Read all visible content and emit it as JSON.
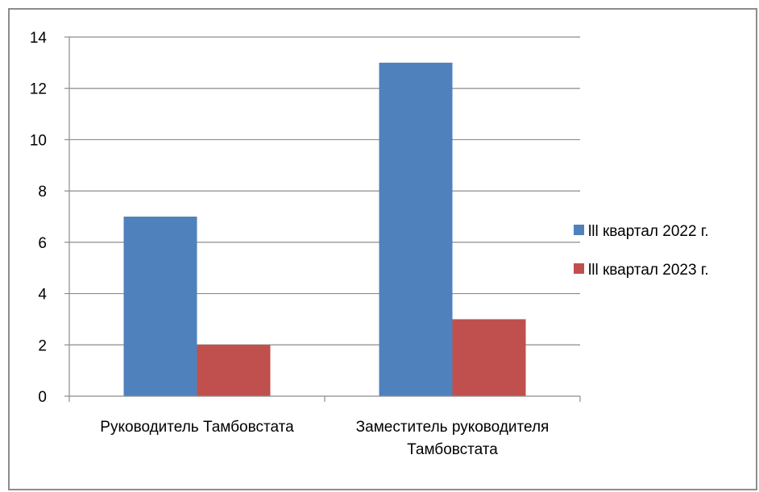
{
  "chart_data": {
    "type": "bar",
    "title": "",
    "xlabel": "",
    "ylabel": "",
    "categories": [
      [
        "Руководитель Тамбовстата"
      ],
      [
        "Заместитель руководителя",
        "Тамбовстата"
      ]
    ],
    "series": [
      {
        "name": "lll квартал 2022 г.",
        "color": "#4f81bd",
        "values": [
          7,
          13
        ]
      },
      {
        "name": "lll квартал 2023 г.",
        "color": "#c0504d",
        "values": [
          2,
          3
        ]
      }
    ],
    "ylim": [
      0,
      14
    ],
    "yticks": [
      0,
      2,
      4,
      6,
      8,
      10,
      12,
      14
    ],
    "grid": true,
    "legend_position": "right"
  }
}
